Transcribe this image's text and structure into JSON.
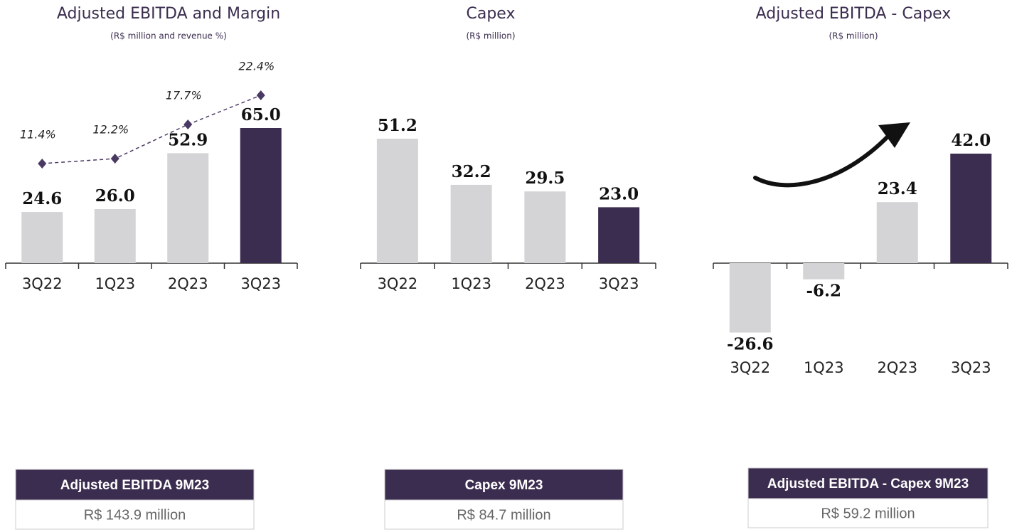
{
  "chart_data": [
    {
      "type": "bar_line",
      "title": "Adjusted EBITDA and Margin",
      "subtitle": "(R$ million and revenue %)",
      "categories": [
        "3Q22",
        "1Q23",
        "2Q23",
        "3Q23"
      ],
      "values": [
        24.6,
        26.0,
        52.9,
        65.0
      ],
      "value_labels": [
        "24.6",
        "26.0",
        "52.9",
        "65.0"
      ],
      "colors": [
        "#d4d4d6",
        "#d4d4d6",
        "#d4d4d6",
        "#3b2d4f"
      ],
      "line_values": [
        11.4,
        12.2,
        17.7,
        22.4
      ],
      "line_value_labels": [
        "11.4%",
        "12.2%",
        "17.7%",
        "22.4%"
      ],
      "line_color": "#4a3a63",
      "summary": {
        "title": "Adjusted EBITDA 9M23",
        "value": "R$ 143.9 million"
      }
    },
    {
      "type": "bar",
      "title": "Capex",
      "subtitle": "(R$ million)",
      "categories": [
        "3Q22",
        "1Q23",
        "2Q23",
        "3Q23"
      ],
      "values": [
        51.2,
        32.2,
        29.5,
        23.0
      ],
      "value_labels": [
        "51.2",
        "32.2",
        "29.5",
        "23.0"
      ],
      "colors": [
        "#d4d4d6",
        "#d4d4d6",
        "#d4d4d6",
        "#3b2d4f"
      ],
      "summary": {
        "title": "Capex 9M23",
        "value": "R$ 84.7 million"
      }
    },
    {
      "type": "bar",
      "title": "Adjusted EBITDA - Capex",
      "subtitle": "(R$ million)",
      "categories": [
        "3Q22",
        "1Q23",
        "2Q23",
        "3Q23"
      ],
      "values": [
        -26.6,
        -6.2,
        23.4,
        42.0
      ],
      "value_labels": [
        "-26.6",
        "-6.2",
        "23.4",
        "42.0"
      ],
      "colors": [
        "#d4d4d6",
        "#d4d4d6",
        "#d4d4d6",
        "#3b2d4f"
      ],
      "summary": {
        "title": "Adjusted EBITDA - Capex 9M23",
        "value": "R$ 59.2 million"
      }
    }
  ]
}
